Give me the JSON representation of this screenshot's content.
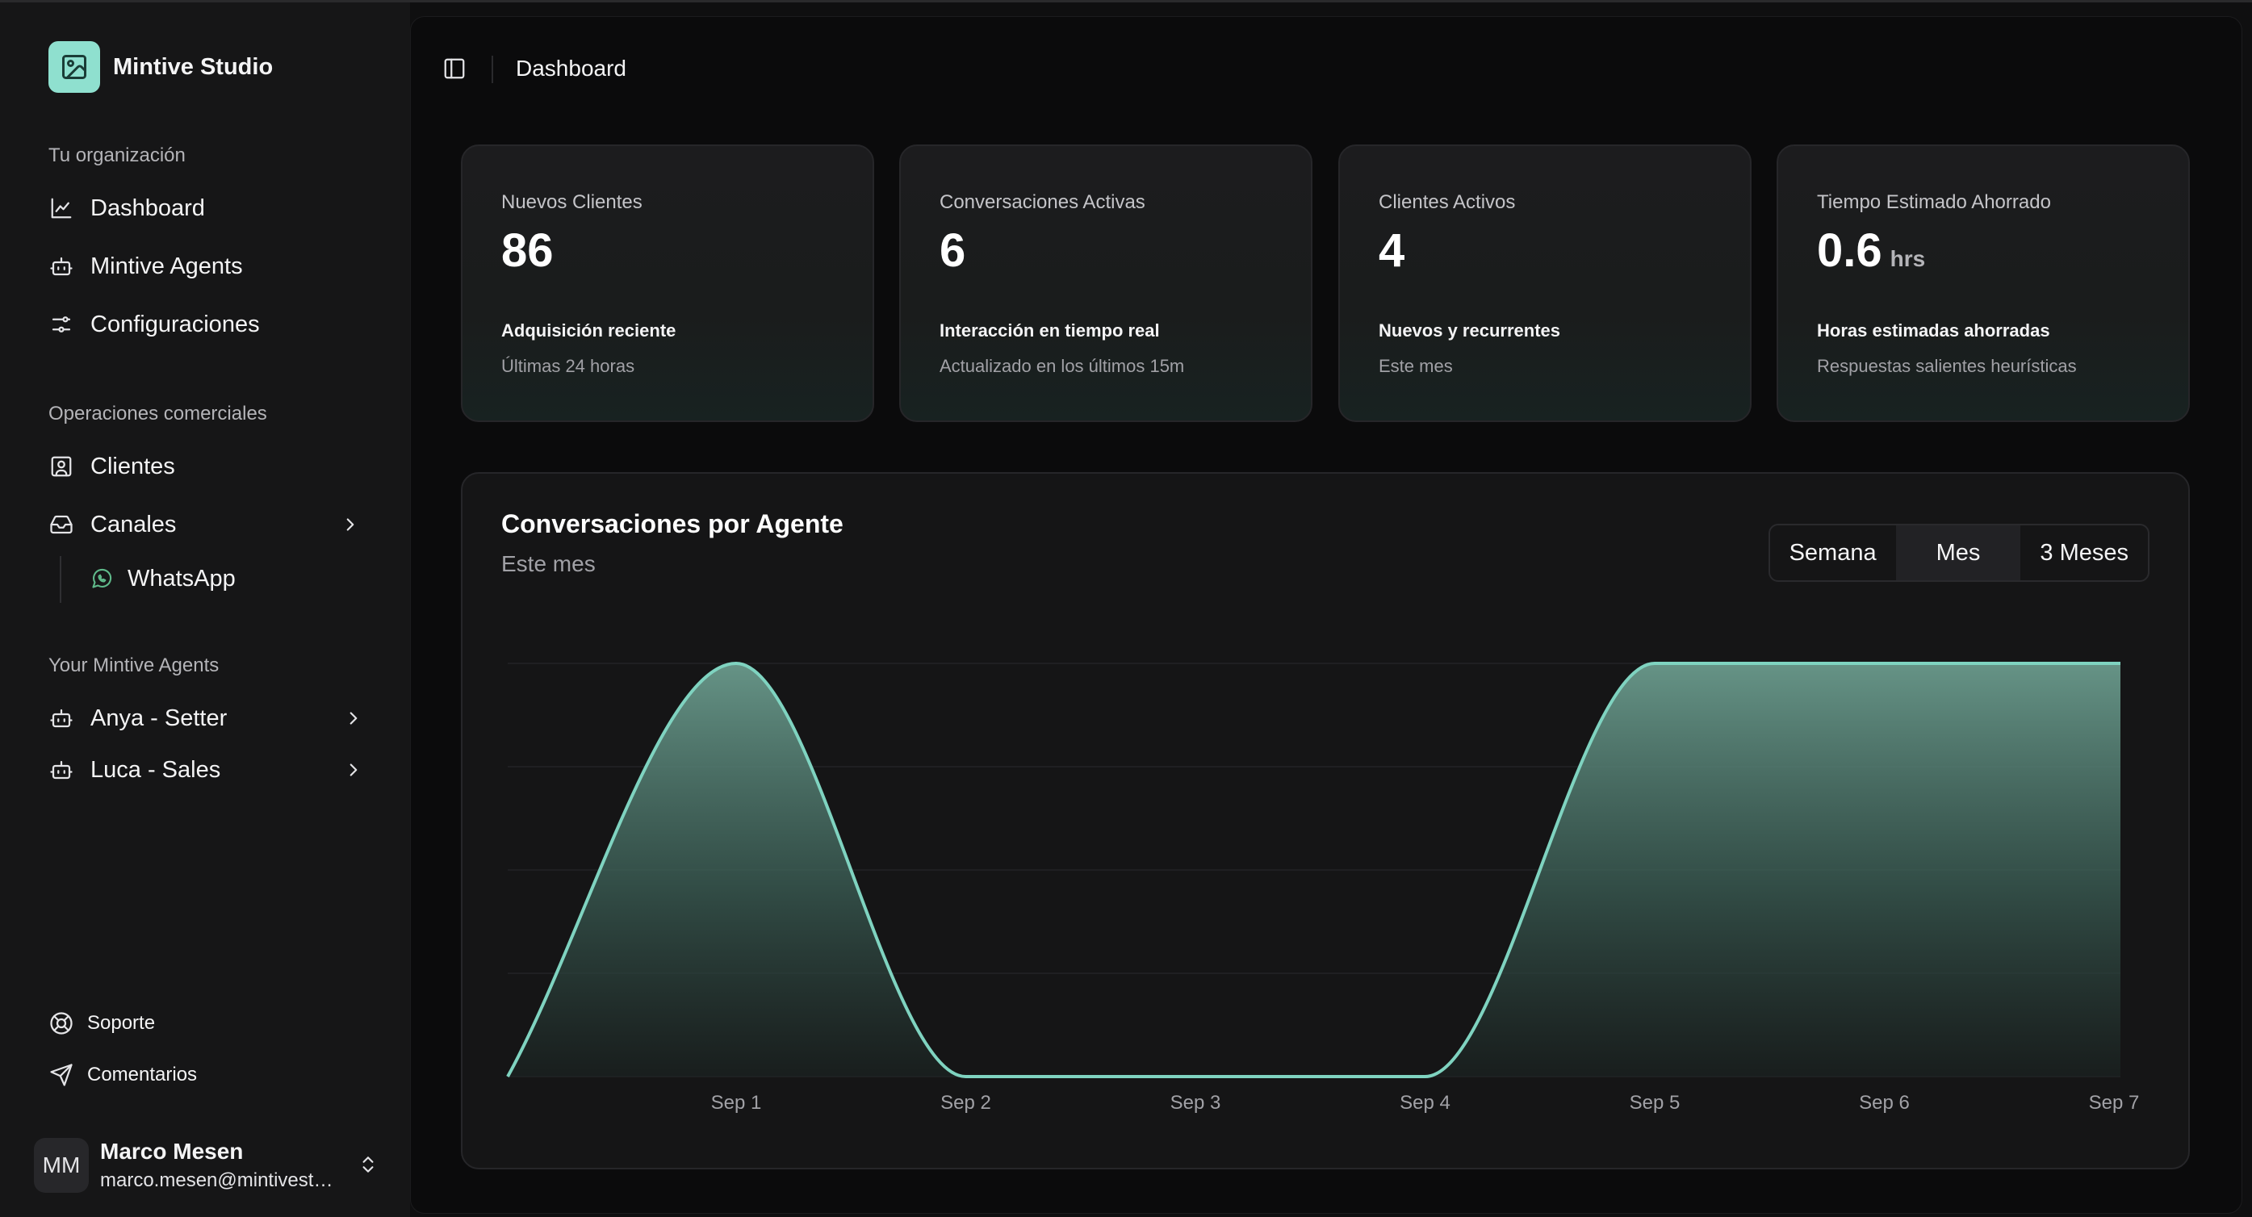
{
  "brand": {
    "name": "Mintive Studio"
  },
  "sidebar": {
    "org_label": "Tu organización",
    "org_items": [
      {
        "label": "Dashboard",
        "icon": "chart-line-icon"
      },
      {
        "label": "Mintive Agents",
        "icon": "bot-icon"
      },
      {
        "label": "Configuraciones",
        "icon": "sliders-icon"
      }
    ],
    "ops_label": "Operaciones comerciales",
    "ops_items": [
      {
        "label": "Clientes",
        "icon": "contact-icon"
      },
      {
        "label": "Canales",
        "icon": "inbox-icon"
      }
    ],
    "channels_sub": [
      {
        "label": "WhatsApp",
        "icon": "whatsapp-icon"
      }
    ],
    "agents_label": "Your Mintive Agents",
    "agents": [
      {
        "label": "Anya - Setter",
        "icon": "bot-icon"
      },
      {
        "label": "Luca - Sales",
        "icon": "bot-icon"
      }
    ],
    "footer": [
      {
        "label": "Soporte",
        "icon": "lifebuoy-icon"
      },
      {
        "label": "Comentarios",
        "icon": "send-icon"
      }
    ],
    "user": {
      "initials": "MM",
      "name": "Marco Mesen",
      "email": "marco.mesen@mintivestudio.com"
    }
  },
  "header": {
    "title": "Dashboard"
  },
  "cards": [
    {
      "label": "Nuevos Clientes",
      "value": "86",
      "unit": "",
      "sub": "Adquisición reciente",
      "note": "Últimas 24 horas"
    },
    {
      "label": "Conversaciones Activas",
      "value": "6",
      "unit": "",
      "sub": "Interacción en tiempo real",
      "note": "Actualizado en los últimos 15m"
    },
    {
      "label": "Clientes Activos",
      "value": "4",
      "unit": "",
      "sub": "Nuevos y recurrentes",
      "note": "Este mes"
    },
    {
      "label": "Tiempo Estimado Ahorrado",
      "value": "0.6",
      "unit": "hrs",
      "sub": "Horas estimadas ahorradas",
      "note": "Respuestas salientes heurísticas"
    }
  ],
  "chart": {
    "title": "Conversaciones por Agente",
    "subtitle": "Este mes",
    "ranges": [
      "Semana",
      "Mes",
      "3 Meses"
    ],
    "active_range": "Mes"
  },
  "colors": {
    "accent": "#8fe0cf",
    "line": "#7fd3c0",
    "fill_top": "#6a9a8c",
    "background": "#0b0b0c"
  },
  "chart_data": {
    "type": "area",
    "x": [
      "Sep 1",
      "Sep 2",
      "Sep 3",
      "Sep 4",
      "Sep 5",
      "Sep 6",
      "Sep 7"
    ],
    "series": [
      {
        "values": [
          1,
          0,
          0,
          0,
          1,
          1,
          1
        ]
      }
    ],
    "ylim": [
      0,
      1
    ],
    "grid": true,
    "curve": "monotone"
  }
}
